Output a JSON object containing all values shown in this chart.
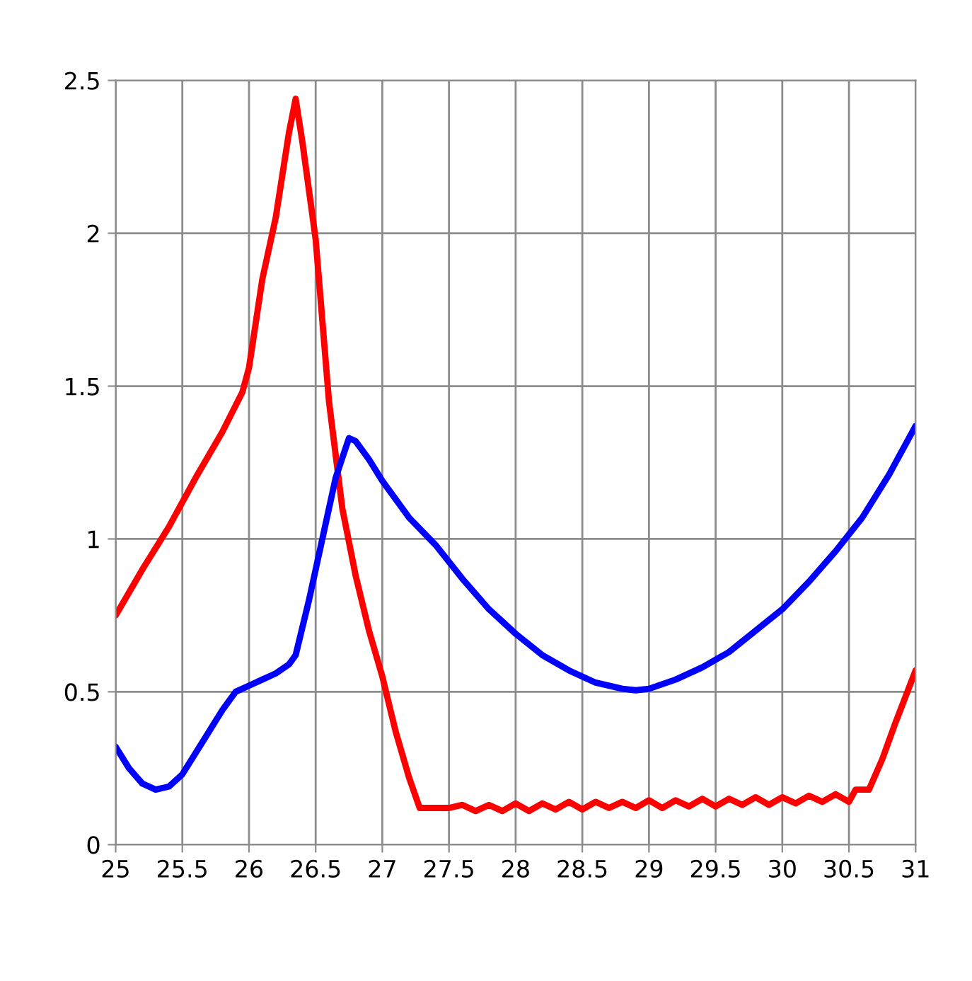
{
  "chart_data": {
    "type": "line",
    "xlim": [
      25,
      31
    ],
    "xticks": [
      25,
      25.5,
      26,
      26.5,
      27,
      27.5,
      28,
      28.5,
      29,
      29.5,
      30,
      30.5,
      31
    ],
    "ylim": [
      0,
      2.5
    ],
    "yticks": [
      0,
      0.5,
      1,
      1.5,
      2,
      2.5
    ],
    "grid": true,
    "legend": false,
    "marker": "none",
    "line_style": "solid",
    "series": [
      {
        "color": "#ff0000",
        "x": [
          25.0,
          25.2,
          25.4,
          25.6,
          25.8,
          25.95,
          26.0,
          26.1,
          26.2,
          26.3,
          26.35,
          26.4,
          26.5,
          26.6,
          26.7,
          26.8,
          26.9,
          27.0,
          27.1,
          27.2,
          27.28,
          27.4,
          27.5,
          27.6,
          27.7,
          27.8,
          27.9,
          28.0,
          28.1,
          28.2,
          28.3,
          28.4,
          28.5,
          28.6,
          28.7,
          28.8,
          28.9,
          29.0,
          29.1,
          29.2,
          29.3,
          29.4,
          29.5,
          29.6,
          29.7,
          29.8,
          29.9,
          30.0,
          30.1,
          30.2,
          30.3,
          30.4,
          30.5,
          30.55,
          30.65,
          30.75,
          30.85,
          31.0
        ],
        "values": [
          0.75,
          0.9,
          1.04,
          1.2,
          1.35,
          1.48,
          1.56,
          1.85,
          2.05,
          2.33,
          2.44,
          2.3,
          1.98,
          1.45,
          1.1,
          0.88,
          0.7,
          0.55,
          0.37,
          0.22,
          0.12,
          0.12,
          0.12,
          0.13,
          0.11,
          0.13,
          0.11,
          0.135,
          0.11,
          0.135,
          0.115,
          0.14,
          0.115,
          0.14,
          0.12,
          0.14,
          0.12,
          0.145,
          0.12,
          0.145,
          0.125,
          0.15,
          0.125,
          0.15,
          0.13,
          0.155,
          0.13,
          0.155,
          0.135,
          0.16,
          0.14,
          0.165,
          0.14,
          0.18,
          0.18,
          0.28,
          0.4,
          0.57
        ]
      },
      {
        "color": "#0000ff",
        "x": [
          25.0,
          25.1,
          25.2,
          25.3,
          25.4,
          25.5,
          25.6,
          25.7,
          25.8,
          25.9,
          26.0,
          26.1,
          26.2,
          26.3,
          26.35,
          26.45,
          26.55,
          26.65,
          26.75,
          26.8,
          26.9,
          27.0,
          27.2,
          27.4,
          27.6,
          27.8,
          28.0,
          28.2,
          28.4,
          28.6,
          28.8,
          28.9,
          29.0,
          29.2,
          29.4,
          29.6,
          29.8,
          30.0,
          30.2,
          30.4,
          30.6,
          30.8,
          31.0
        ],
        "values": [
          0.32,
          0.25,
          0.2,
          0.18,
          0.19,
          0.23,
          0.3,
          0.37,
          0.44,
          0.5,
          0.52,
          0.54,
          0.56,
          0.59,
          0.62,
          0.8,
          1.0,
          1.2,
          1.33,
          1.32,
          1.26,
          1.19,
          1.07,
          0.98,
          0.87,
          0.77,
          0.69,
          0.62,
          0.57,
          0.53,
          0.51,
          0.505,
          0.51,
          0.54,
          0.58,
          0.63,
          0.7,
          0.77,
          0.86,
          0.96,
          1.07,
          1.21,
          1.37
        ]
      }
    ]
  }
}
